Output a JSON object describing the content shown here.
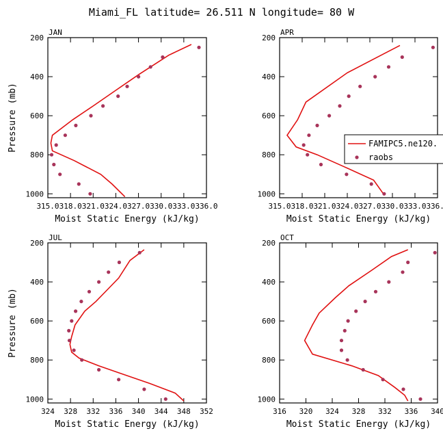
{
  "title": "Miami_FL  latitude= 26.511 N longitude= 80 W",
  "colors": {
    "model": "#e01010",
    "obs": "#a8345a",
    "axis": "#000000"
  },
  "legend": {
    "model": "FAMIPC5.ne120.",
    "obs": "raobs",
    "placement": "right-of-APR-panel"
  },
  "chart_data": [
    {
      "type": "line",
      "panel": "JAN",
      "xlabel": "Moist Static Energy (kJ/kg)",
      "ylabel": "Pressure (mb)",
      "xlim": [
        315.0,
        336.0
      ],
      "ylim": [
        1020,
        200
      ],
      "xticks": [
        "315.0",
        "318.0",
        "321.0",
        "324.0",
        "327.0",
        "330.0",
        "333.0",
        "336.0"
      ],
      "yticks": [
        "200",
        "400",
        "600",
        "800",
        "1000"
      ],
      "series": [
        {
          "name": "FAMIPC5.ne120.",
          "x": [
            334.0,
            331.0,
            327.0,
            324.0,
            321.0,
            318.3,
            315.6,
            315.4,
            315.6,
            318.5,
            322.0,
            323.5,
            325.2
          ],
          "y": [
            235,
            290,
            390,
            470,
            550,
            620,
            700,
            740,
            780,
            830,
            900,
            950,
            1015
          ]
        },
        {
          "name": "raobs",
          "x": [
            335.0,
            330.2,
            328.6,
            327.0,
            325.5,
            324.3,
            322.3,
            320.7,
            318.7,
            317.3,
            316.1,
            315.5,
            315.8,
            316.6,
            319.1,
            320.6
          ],
          "y": [
            250,
            300,
            350,
            400,
            450,
            500,
            550,
            600,
            650,
            700,
            750,
            800,
            850,
            900,
            950,
            1000
          ]
        }
      ]
    },
    {
      "type": "line",
      "panel": "APR",
      "xlabel": "Moist Static Energy (kJ/kg)",
      "ylabel": "",
      "xlim": [
        315.0,
        336.0
      ],
      "ylim": [
        1020,
        200
      ],
      "xticks": [
        "315.0",
        "318.0",
        "321.0",
        "324.0",
        "327.0",
        "330.0",
        "333.0",
        "336.0"
      ],
      "yticks": [
        "200",
        "400",
        "600",
        "800",
        "1000"
      ],
      "series": [
        {
          "name": "FAMIPC5.ne120.",
          "x": [
            331.0,
            329.0,
            324.0,
            318.5,
            317.4,
            316.0,
            317.2,
            320.0,
            323.5,
            327.5,
            328.8
          ],
          "y": [
            240,
            280,
            380,
            530,
            620,
            700,
            760,
            800,
            860,
            930,
            1000
          ]
        },
        {
          "name": "raobs",
          "x": [
            335.4,
            331.3,
            329.5,
            327.7,
            325.7,
            324.2,
            323.0,
            321.6,
            320.0,
            318.9,
            318.2,
            318.7,
            320.5,
            323.9,
            327.2,
            328.9
          ],
          "y": [
            250,
            300,
            350,
            400,
            450,
            500,
            550,
            600,
            650,
            700,
            750,
            800,
            850,
            900,
            950,
            1000
          ]
        }
      ]
    },
    {
      "type": "line",
      "panel": "JUL",
      "xlabel": "Moist Static Energy (kJ/kg)",
      "ylabel": "Pressure (mb)",
      "xlim": [
        324,
        352
      ],
      "ylim": [
        1020,
        200
      ],
      "xticks": [
        "324",
        "328",
        "332",
        "336",
        "340",
        "344",
        "348",
        "352"
      ],
      "yticks": [
        "200",
        "400",
        "600",
        "800",
        "1000"
      ],
      "series": [
        {
          "name": "FAMIPC5.ne120.",
          "x": [
            341.0,
            338.5,
            336.5,
            334.5,
            332.5,
            330.5,
            328.8,
            328.2,
            327.9,
            328.2,
            329.5,
            333.0,
            337.0,
            342.0,
            346.5,
            348.0
          ],
          "y": [
            235,
            290,
            380,
            440,
            500,
            550,
            620,
            680,
            720,
            760,
            790,
            830,
            870,
            920,
            970,
            1010
          ]
        },
        {
          "name": "raobs",
          "x": [
            340.2,
            336.6,
            334.7,
            333.0,
            331.3,
            329.9,
            328.9,
            328.2,
            327.7,
            327.8,
            328.6,
            330.0,
            333.0,
            336.5,
            341.0,
            344.8
          ],
          "y": [
            250,
            300,
            350,
            400,
            450,
            500,
            550,
            600,
            650,
            700,
            750,
            800,
            850,
            900,
            950,
            1000
          ]
        }
      ]
    },
    {
      "type": "line",
      "panel": "OCT",
      "xlabel": "Moist Static Energy (kJ/kg)",
      "ylabel": "",
      "xlim": [
        316,
        340
      ],
      "ylim": [
        1020,
        200
      ],
      "xticks": [
        "316",
        "320",
        "324",
        "328",
        "332",
        "336",
        "340"
      ],
      "yticks": [
        "200",
        "400",
        "600",
        "800",
        "1000"
      ],
      "series": [
        {
          "name": "FAMIPC5.ne120.",
          "x": [
            335.5,
            333.0,
            330.0,
            326.5,
            324.5,
            322.0,
            321.0,
            319.8,
            321.0,
            327.0,
            331.0,
            333.5,
            335.0,
            335.5
          ],
          "y": [
            235,
            270,
            340,
            420,
            480,
            560,
            620,
            700,
            770,
            830,
            880,
            940,
            980,
            1010
          ]
        },
        {
          "name": "raobs",
          "x": [
            339.6,
            335.5,
            334.7,
            332.6,
            330.6,
            329.0,
            327.6,
            326.4,
            325.9,
            325.4,
            325.4,
            326.3,
            328.7,
            331.7,
            334.8,
            337.4
          ],
          "y": [
            250,
            300,
            350,
            400,
            450,
            500,
            550,
            600,
            650,
            700,
            750,
            800,
            850,
            900,
            950,
            1000
          ]
        }
      ]
    }
  ]
}
